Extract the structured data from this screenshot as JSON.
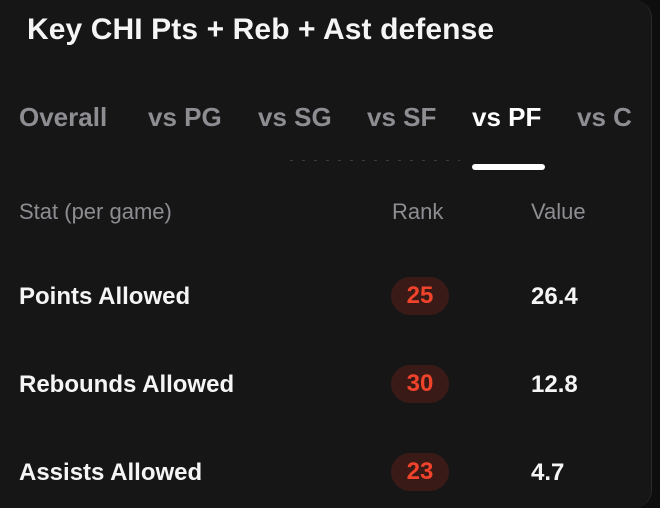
{
  "card": {
    "title": "Key CHI Pts + Reb + Ast defense"
  },
  "tabs": [
    {
      "label": "Overall",
      "active": false
    },
    {
      "label": "vs PG",
      "active": false
    },
    {
      "label": "vs SG",
      "active": false
    },
    {
      "label": "vs SF",
      "active": false
    },
    {
      "label": "vs PF",
      "active": true
    },
    {
      "label": "vs C",
      "active": false
    }
  ],
  "table": {
    "headers": {
      "stat": "Stat (per game)",
      "rank": "Rank",
      "value": "Value"
    },
    "rows": [
      {
        "stat": "Points Allowed",
        "rank": "25",
        "value": "26.4"
      },
      {
        "stat": "Rebounds Allowed",
        "rank": "30",
        "value": "12.8"
      },
      {
        "stat": "Assists Allowed",
        "rank": "23",
        "value": "4.7"
      }
    ]
  },
  "colors": {
    "background": "#161617",
    "tab_inactive": "#8d8d92",
    "tab_active": "#ffffff",
    "rank_text": "#f0432b",
    "rank_badge_bg": "#3a1a16"
  }
}
